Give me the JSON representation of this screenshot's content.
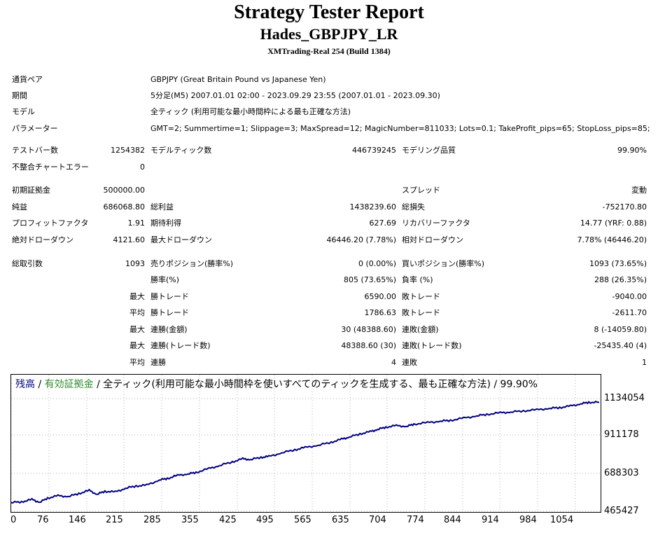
{
  "report": {
    "title": "Strategy Tester Report",
    "ea_name": "Hades_GBPJPY_LR",
    "server": "XMTrading-Real 254 (Build 1384)"
  },
  "info": {
    "pair_label": "通貨ペア",
    "pair_value": "GBPJPY (Great Britain Pound vs Japanese Yen)",
    "period_label": "期間",
    "period_value": "5分足(M5) 2007.01.01 02:00 - 2023.09.29 23:55 (2007.01.01 - 2023.09.30)",
    "model_label": "モデル",
    "model_value": "全ティック (利用可能な最小時間枠による最も正確な方法)",
    "params_label": "パラメーター",
    "params_value": "GMT=2; Summertime=1; Slippage=3; MaxSpread=12; MagicNumber=811033; Lots=0.1; TakeProfit_pips=65; StopLoss_pips=85;"
  },
  "stats": {
    "bars_label": "テストバー数",
    "bars_value": "1254382",
    "ticks_label": "モデルティック数",
    "ticks_value": "446739245",
    "quality_label": "モデリング品質",
    "quality_value": "99.90%",
    "mismatch_label": "不整合チャートエラー",
    "mismatch_value": "0",
    "deposit_label": "初期証拠金",
    "deposit_value": "500000.00",
    "spread_label": "スプレッド",
    "spread_value": "変動",
    "net_label": "純益",
    "net_value": "686068.80",
    "gross_profit_label": "総利益",
    "gross_profit_value": "1438239.60",
    "gross_loss_label": "総損失",
    "gross_loss_value": "-752170.80",
    "pf_label": "プロフィットファクタ",
    "pf_value": "1.91",
    "expected_label": "期待利得",
    "expected_value": "627.69",
    "recovery_label": "リカバリーファクタ",
    "recovery_value": "14.77 (YRF: 0.88)",
    "abs_dd_label": "絶対ドローダウン",
    "abs_dd_value": "4121.60",
    "max_dd_label": "最大ドローダウン",
    "max_dd_value": "46446.20 (7.78%)",
    "rel_dd_label": "相対ドローダウン",
    "rel_dd_value": "7.78% (46446.20)",
    "trades_label": "総取引数",
    "trades_value": "1093",
    "short_label": "売りポジション(勝率%)",
    "short_value": "0 (0.00%)",
    "long_label": "買いポジション(勝率%)",
    "long_value": "1093 (73.65%)",
    "winrate_label": "勝率(%)",
    "winrate_value": "805 (73.65%)",
    "lossrate_label": "負率 (%)",
    "lossrate_value": "288 (26.35%)",
    "max_label": "最大",
    "avg_label": "平均",
    "win_trade_label": "勝トレード",
    "loss_trade_label": "敗トレード",
    "max_win_value": "6590.00",
    "max_loss_value": "-9040.00",
    "avg_win_value": "1786.63",
    "avg_loss_value": "-2611.70",
    "consec_win_amt_label": "連勝(金額)",
    "consec_win_amt_value": "30 (48388.60)",
    "consec_loss_amt_label": "連敗(金額)",
    "consec_loss_amt_value": "8 (-14059.80)",
    "consec_win_cnt_label": "連勝(トレード数)",
    "consec_win_cnt_value": "48388.60 (30)",
    "consec_loss_cnt_label": "連敗(トレード数)",
    "consec_loss_cnt_value": "-25435.40 (4)",
    "avg_consec_win_label": "連勝",
    "avg_consec_win_value": "4",
    "avg_consec_loss_label": "連敗",
    "avg_consec_loss_value": "1"
  },
  "legend": {
    "balance": "残高",
    "sep1": " / ",
    "equity": "有効証拠金",
    "rest": " / 全ティック(利用可能な最小時間枠を使いすべてのティックを生成する、最も正確な方法) / 99.90%",
    "balance_color": "#000080",
    "equity_color": "#2e8b2e"
  },
  "chart_data": {
    "type": "line",
    "ylim": [
      465427,
      1190000
    ],
    "xlim": [
      0,
      1130
    ],
    "y_ticks": [
      "1134054",
      "911178",
      "688303",
      "465427"
    ],
    "x_ticks": [
      "0",
      "76",
      "146",
      "215",
      "285",
      "355",
      "425",
      "495",
      "565",
      "635",
      "704",
      "774",
      "844",
      "914",
      "984",
      "1054"
    ],
    "series": [
      {
        "color": "#000080",
        "x": [
          0,
          20,
          40,
          55,
          70,
          90,
          110,
          130,
          150,
          165,
          180,
          200,
          220,
          240,
          260,
          285,
          300,
          320,
          340,
          355,
          380,
          400,
          425,
          445,
          460,
          480,
          495,
          520,
          545,
          565,
          590,
          615,
          635,
          650,
          670,
          690,
          704,
          720,
          740,
          760,
          774,
          800,
          825,
          844,
          870,
          895,
          914,
          940,
          960,
          984,
          1010,
          1035,
          1054,
          1075,
          1095,
          1110,
          1130
        ],
        "y": [
          500000,
          505000,
          520000,
          502000,
          530000,
          545000,
          540000,
          560000,
          580000,
          555000,
          575000,
          570000,
          595000,
          610000,
          615000,
          650000,
          660000,
          680000,
          690000,
          700000,
          725000,
          745000,
          770000,
          790000,
          785000,
          800000,
          805000,
          830000,
          850000,
          865000,
          880000,
          900000,
          920000,
          935000,
          955000,
          970000,
          985000,
          1000000,
          1010000,
          1005000,
          1020000,
          1030000,
          1040000,
          1045000,
          1060000,
          1075000,
          1085000,
          1095000,
          1100000,
          1108000,
          1115000,
          1125000,
          1130000,
          1140000,
          1155000,
          1165000,
          1165000
        ]
      }
    ]
  }
}
